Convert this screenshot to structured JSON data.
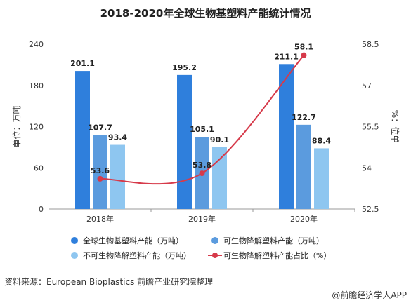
{
  "title": "2018-2020年全球生物基塑料产能统计情况",
  "footer": {
    "source": "资料来源：European Bioplastics 前瞻产业研究院整理",
    "credit": "@前瞻经济学人APP"
  },
  "chart_data": {
    "type": "bar",
    "categories": [
      "2018年",
      "2019年",
      "2020年"
    ],
    "series": [
      {
        "name": "全球生物基塑料产能（万吨）",
        "values": [
          201.1,
          195.2,
          211.1
        ],
        "color": "#2f7fdc"
      },
      {
        "name": "可生物降解塑料产能（万吨）",
        "values": [
          107.7,
          105.1,
          122.7
        ],
        "color": "#5b9bde"
      },
      {
        "name": "不可生物降解塑料产能（万吨）",
        "values": [
          93.4,
          90.1,
          88.4
        ],
        "color": "#8ec6f0"
      }
    ],
    "line_series": {
      "name": "可生物降解塑料产能占比（%）",
      "values": [
        53.6,
        53.8,
        58.1
      ],
      "color": "#d63a4a",
      "axis": "right"
    },
    "ylabel": "单位：万吨",
    "y2label": "%：位单",
    "ylim": [
      0,
      240
    ],
    "yticks": [
      0,
      60,
      120,
      180,
      240
    ],
    "y2lim": [
      52.5,
      58.5
    ],
    "y2ticks": [
      52.5,
      54,
      55.5,
      57,
      58.5
    ],
    "legend_position": "bottom",
    "grid": false
  }
}
